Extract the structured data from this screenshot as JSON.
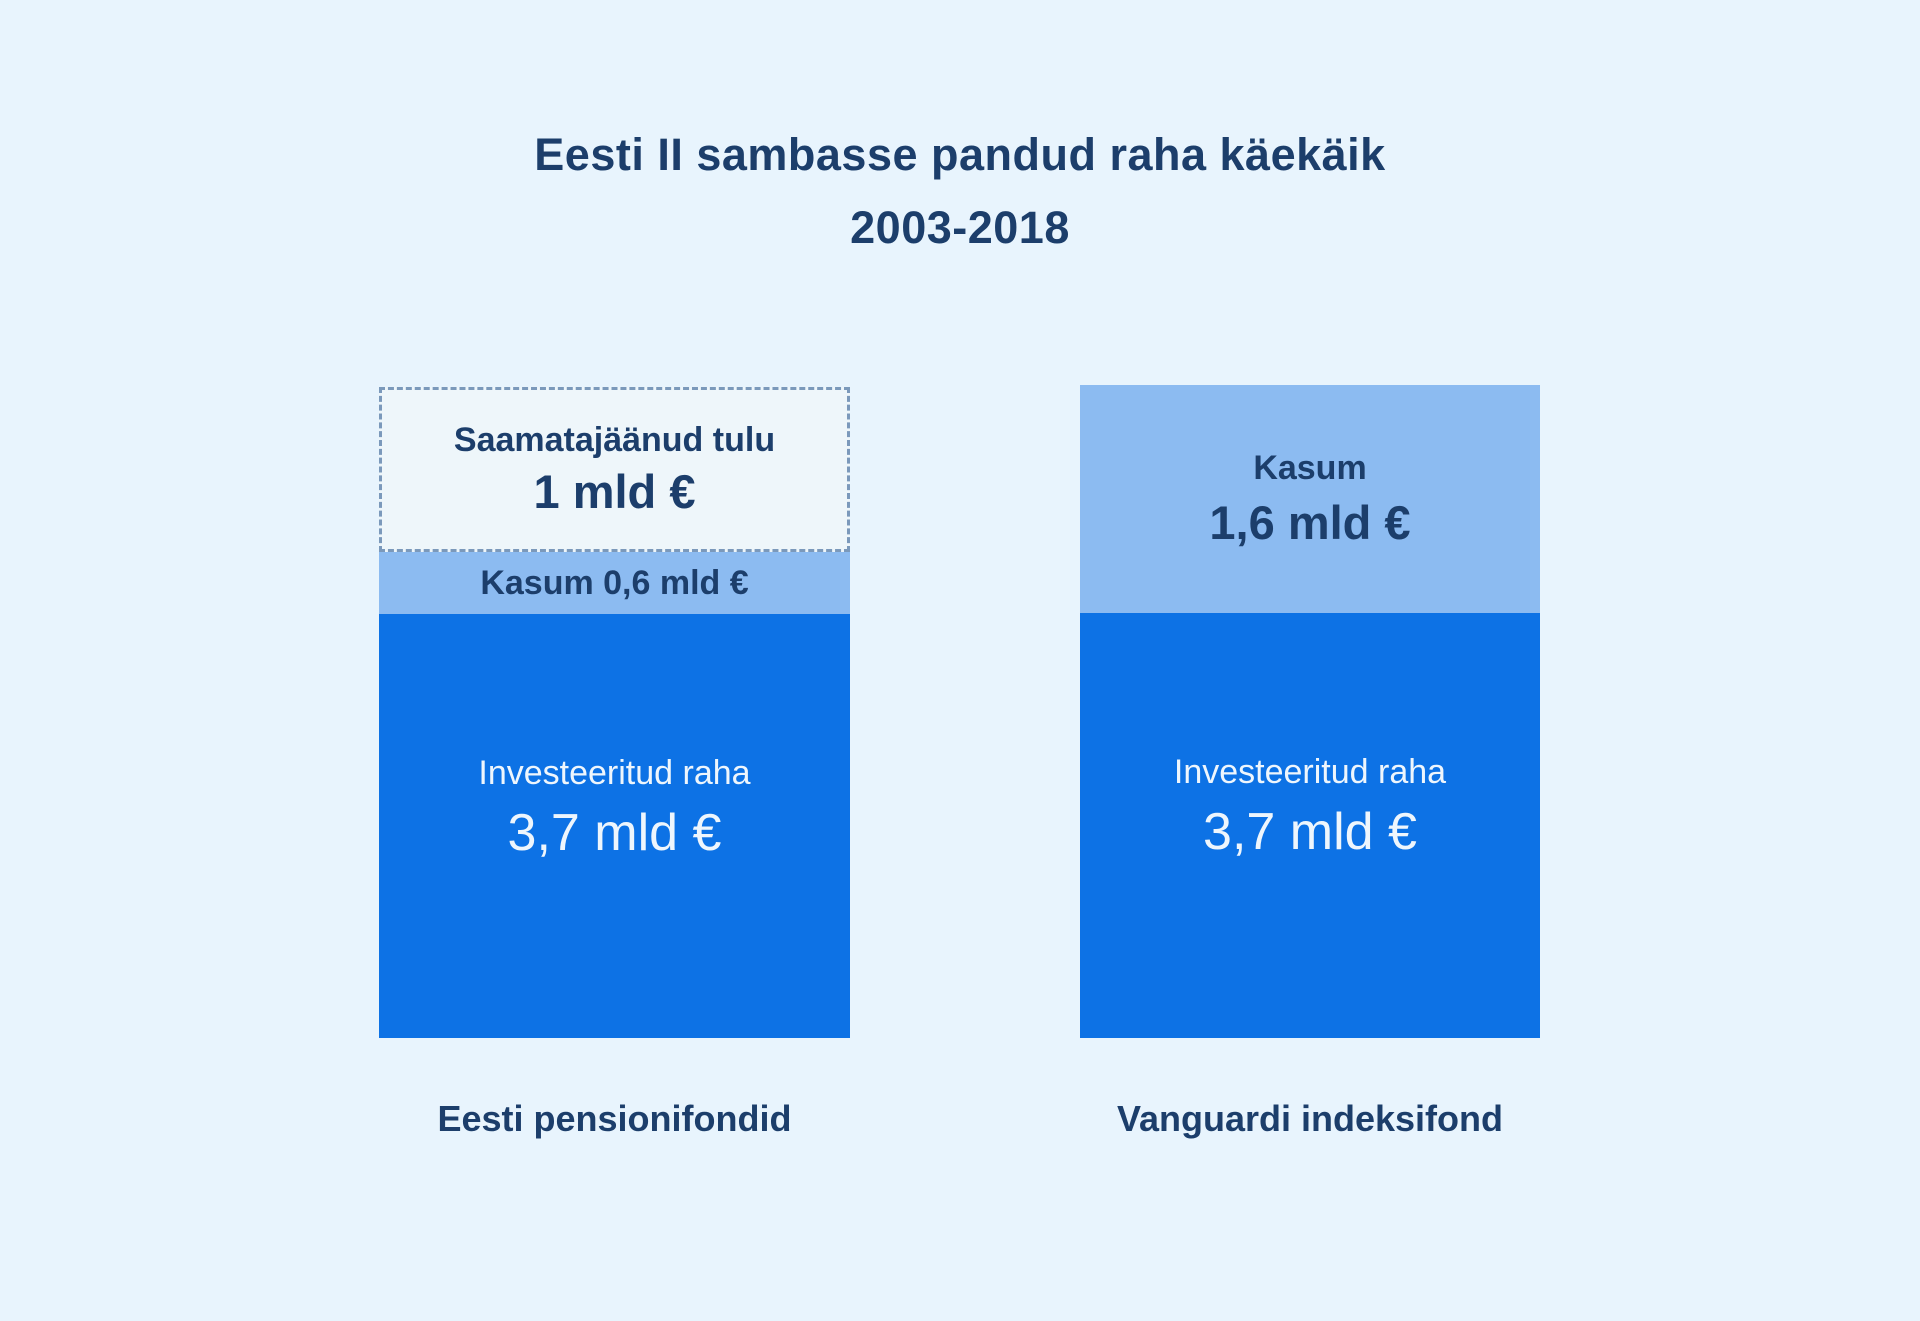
{
  "chart_data": {
    "type": "bar",
    "title": "Eesti II sambasse pandud raha käekäik",
    "subtitle": "2003-2018",
    "unit": "mld €",
    "categories": [
      "Eesti pensionifondid",
      "Vanguardi indeksifond"
    ],
    "series": [
      {
        "name": "Investeeritud raha",
        "values": [
          3.7,
          3.7
        ]
      },
      {
        "name": "Kasum",
        "values": [
          0.6,
          1.6
        ]
      },
      {
        "name": "Saamatajäänud tulu",
        "values": [
          1.0,
          0
        ]
      }
    ],
    "layout": {
      "orientation": "vertical",
      "stacked": true,
      "axes": "none",
      "gridlines": false,
      "legend": "none",
      "value_labels": "inside-segments"
    },
    "bars": [
      {
        "category": "Eesti pensionifondid",
        "segments": [
          {
            "kind": "missed-income",
            "label": "Saamatajäänud tulu",
            "value_label": "1 mld €",
            "value": 1.0,
            "style": "dashed-outline"
          },
          {
            "kind": "profit",
            "label": "Kasum 0,6 mld €",
            "value": 0.6
          },
          {
            "kind": "invested",
            "label": "Investeeritud raha",
            "value_label": "3,7 mld €",
            "value": 3.7
          }
        ]
      },
      {
        "category": "Vanguardi indeksifond",
        "segments": [
          {
            "kind": "profit",
            "label": "Kasum",
            "value_label": "1,6 mld €",
            "value": 1.6
          },
          {
            "kind": "invested",
            "label": "Investeeritud raha",
            "value_label": "3,7 mld €",
            "value": 3.7
          }
        ]
      }
    ],
    "colors": {
      "background": "#e8f4fd",
      "invested_fill": "#0d72e5",
      "profit_fill": "#8cbbf1",
      "missed_fill": "#eef6fa",
      "missed_border": "#7b99bb",
      "navy_text": "#1c3e6b",
      "light_text": "#eef6fd"
    }
  }
}
